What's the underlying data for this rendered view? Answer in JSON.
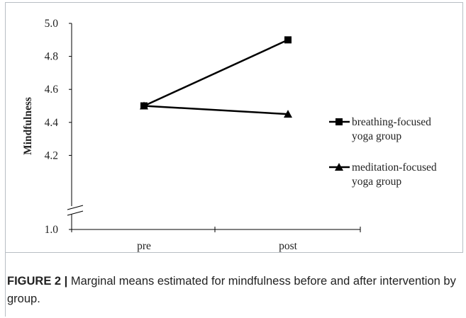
{
  "chart_data": {
    "type": "line",
    "ylabel": "Mindfulness",
    "xlabel": "",
    "categories": [
      "pre",
      "post"
    ],
    "ylim": [
      4.0,
      5.0
    ],
    "y_axis_break": true,
    "y_ticks": [
      "5.0",
      "4.8",
      "4.6",
      "4.4",
      "4.2",
      "1.0"
    ],
    "grid": false,
    "legend_position": "right",
    "series": [
      {
        "name": "breathing-focused yoga group",
        "name_lines": [
          "breathing-focused",
          "yoga group"
        ],
        "marker": "square",
        "values": [
          4.5,
          4.9
        ]
      },
      {
        "name": "meditation-focused yoga group",
        "name_lines": [
          "meditation-focused",
          "yoga group"
        ],
        "marker": "triangle",
        "values": [
          4.5,
          4.45
        ]
      }
    ]
  },
  "caption": {
    "lead": "FIGURE 2 |",
    "text": " Marginal means estimated for mindfulness before and after intervention by group."
  },
  "colors": {
    "line": "#000000",
    "frame": "#b8bec4",
    "text": "#222222"
  }
}
